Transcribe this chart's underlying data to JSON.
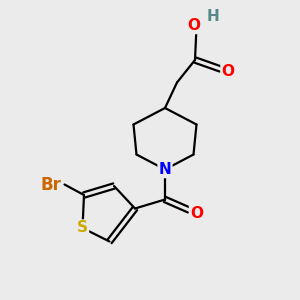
{
  "background_color": "#ebebeb",
  "bond_color": "#000000",
  "atom_colors": {
    "O": "#ff0000",
    "N": "#0000ff",
    "S": "#ccaa00",
    "Br": "#cc6600",
    "H": "#558888",
    "C": "#000000"
  },
  "font_size": 11,
  "lw": 1.6,
  "figsize": [
    3.0,
    3.0
  ],
  "dpi": 100
}
